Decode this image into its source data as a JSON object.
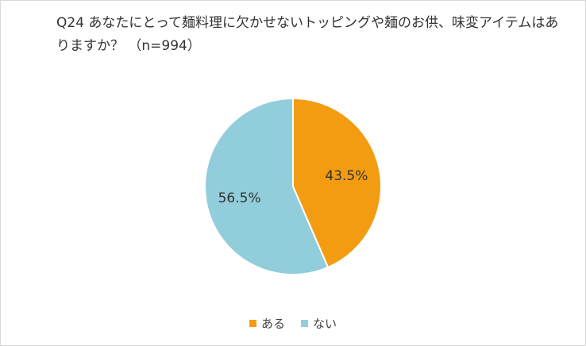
{
  "title_lines": [
    "Q24 あなたにとって麺料理に欠かせないトッピングや麺のお供、味変アイテムはあ",
    "りますか？ （n=994）"
  ],
  "chart_data": {
    "type": "pie",
    "title": "Q24 あなたにとって麺料理に欠かせないトッピングや麺のお供、味変アイテムはありますか？ （n=994）",
    "slices": [
      {
        "label": "ある",
        "value": 43.5,
        "display": "43.5%",
        "color": "#F39C12"
      },
      {
        "label": "ない",
        "value": 56.5,
        "display": "56.5%",
        "color": "#92CDDC"
      }
    ],
    "legend_position": "bottom",
    "start_angle": "12 o'clock",
    "direction": "clockwise"
  }
}
